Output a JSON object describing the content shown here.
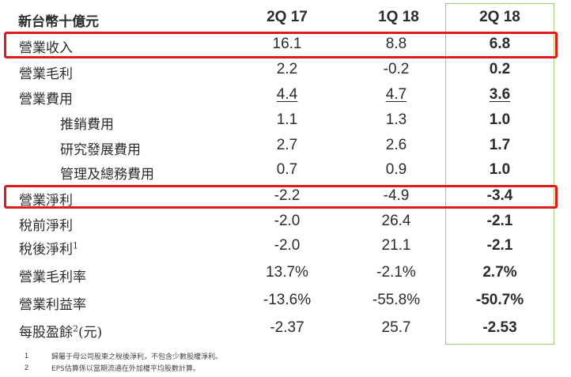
{
  "header": {
    "title": "新台幣十億元",
    "columns": [
      "2Q 17",
      "1Q 18",
      "2Q 18"
    ]
  },
  "rows": [
    {
      "label": "營業收入",
      "values": [
        "16.1",
        "8.8",
        "6.8"
      ]
    },
    {
      "label": "營業毛利",
      "values": [
        "2.2",
        "-0.2",
        "0.2"
      ]
    },
    {
      "label": "營業費用",
      "values": [
        "4.4",
        "4.7",
        "3.6"
      ]
    },
    {
      "label": "推銷費用",
      "values": [
        "1.1",
        "1.3",
        "1.0"
      ]
    },
    {
      "label": "研究發展費用",
      "values": [
        "2.7",
        "2.6",
        "1.7"
      ]
    },
    {
      "label": "管理及總務費用",
      "values": [
        "0.7",
        "0.9",
        "1.0"
      ]
    },
    {
      "label": "營業淨利",
      "values": [
        "-2.2",
        "-4.9",
        "-3.4"
      ]
    },
    {
      "label": "稅前淨利",
      "values": [
        "-2.0",
        "26.4",
        "-2.1"
      ]
    },
    {
      "label": "稅後淨利",
      "sup": "1",
      "values": [
        "-2.0",
        "21.1",
        "-2.1"
      ]
    },
    {
      "label": "營業毛利率",
      "values": [
        "13.7%",
        "-2.1%",
        "2.7%"
      ]
    },
    {
      "label": "營業利益率",
      "values": [
        "-13.6%",
        "-55.8%",
        "-50.7%"
      ]
    },
    {
      "label": "每股盈餘",
      "sup": "2",
      "suffix": "(元)",
      "values": [
        "-2.37",
        "25.7",
        "-2.53"
      ]
    }
  ],
  "footnotes": [
    {
      "num": "1",
      "text": "歸屬于母公司股東之稅後淨利，不包含少數股權淨利。"
    },
    {
      "num": "2",
      "text": "EPS估算係以當期流通在外加權平均股數計算。"
    }
  ],
  "colors": {
    "highlight_row": "#e0191c",
    "highlight_col": "#9fcf6f"
  }
}
